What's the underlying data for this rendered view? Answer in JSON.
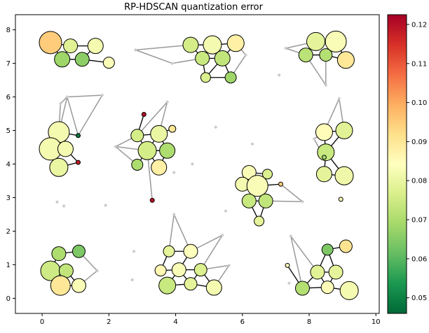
{
  "chart_data": {
    "type": "scatter",
    "title": "RP-HDSCAN quantization error",
    "xlim": [
      -0.8,
      10.1
    ],
    "ylim": [
      -0.45,
      8.45
    ],
    "xticks": [
      0,
      2,
      4,
      6,
      8,
      10
    ],
    "yticks": [
      0,
      1,
      2,
      3,
      4,
      5,
      6,
      7,
      8
    ],
    "colorbar": {
      "min": 0.046,
      "max": 0.1225,
      "ticks": [
        0.05,
        0.06,
        0.07,
        0.08,
        0.09,
        0.1,
        0.11,
        0.12
      ],
      "tick_labels": [
        "0.05",
        "0.06",
        "0.07",
        "0.08",
        "0.09",
        "0.10",
        "0.11",
        "0.12"
      ],
      "colormap": "RdYlGn_r"
    },
    "noise_points": [
      [
        0.45,
        2.87
      ],
      [
        0.65,
        2.75
      ],
      [
        1.9,
        2.77
      ],
      [
        2.75,
        1.4
      ],
      [
        2.7,
        0.55
      ],
      [
        3.95,
        3.75
      ],
      [
        5.2,
        5.1
      ],
      [
        5.5,
        2.6
      ],
      [
        6.3,
        4.6
      ],
      [
        7.1,
        6.65
      ],
      [
        7.4,
        0.45
      ],
      [
        4.5,
        4.0
      ]
    ],
    "nodes": [
      {
        "x": 0.25,
        "y": 7.62,
        "r": 16,
        "v": 0.095
      },
      {
        "x": 0.85,
        "y": 7.52,
        "r": 10,
        "v": 0.078
      },
      {
        "x": 1.6,
        "y": 7.52,
        "r": 11,
        "v": 0.082
      },
      {
        "x": 0.6,
        "y": 7.12,
        "r": 11,
        "v": 0.068
      },
      {
        "x": 1.2,
        "y": 7.12,
        "r": 10,
        "v": 0.066
      },
      {
        "x": 2.0,
        "y": 7.02,
        "r": 8,
        "v": 0.083
      },
      {
        "x": 4.45,
        "y": 7.55,
        "r": 11,
        "v": 0.076
      },
      {
        "x": 5.1,
        "y": 7.55,
        "r": 13,
        "v": 0.082
      },
      {
        "x": 5.8,
        "y": 7.6,
        "r": 12,
        "v": 0.088
      },
      {
        "x": 4.8,
        "y": 7.15,
        "r": 10,
        "v": 0.074
      },
      {
        "x": 5.4,
        "y": 7.15,
        "r": 11,
        "v": 0.073
      },
      {
        "x": 4.9,
        "y": 6.58,
        "r": 7,
        "v": 0.077
      },
      {
        "x": 5.65,
        "y": 6.58,
        "r": 8,
        "v": 0.068
      },
      {
        "x": 8.2,
        "y": 7.65,
        "r": 13,
        "v": 0.079
      },
      {
        "x": 8.8,
        "y": 7.65,
        "r": 15,
        "v": 0.083
      },
      {
        "x": 7.9,
        "y": 7.25,
        "r": 10,
        "v": 0.072
      },
      {
        "x": 8.5,
        "y": 7.25,
        "r": 9,
        "v": 0.071
      },
      {
        "x": 9.1,
        "y": 7.1,
        "r": 12,
        "v": 0.09
      },
      {
        "x": 0.5,
        "y": 4.95,
        "r": 15,
        "v": 0.082
      },
      {
        "x": 0.25,
        "y": 4.45,
        "r": 16,
        "v": 0.082
      },
      {
        "x": 0.7,
        "y": 4.45,
        "r": 11,
        "v": 0.082
      },
      {
        "x": 0.5,
        "y": 3.9,
        "r": 13,
        "v": 0.08
      },
      {
        "x": 1.08,
        "y": 4.85,
        "r": 3,
        "v": 0.048
      },
      {
        "x": 1.08,
        "y": 4.05,
        "r": 3,
        "v": 0.118
      },
      {
        "x": 3.05,
        "y": 5.48,
        "r": 3,
        "v": 0.12
      },
      {
        "x": 2.85,
        "y": 4.85,
        "r": 9,
        "v": 0.076
      },
      {
        "x": 3.5,
        "y": 4.9,
        "r": 12,
        "v": 0.08
      },
      {
        "x": 3.9,
        "y": 5.05,
        "r": 5,
        "v": 0.09
      },
      {
        "x": 3.15,
        "y": 4.4,
        "r": 13,
        "v": 0.076
      },
      {
        "x": 3.75,
        "y": 4.4,
        "r": 11,
        "v": 0.07
      },
      {
        "x": 2.85,
        "y": 3.98,
        "r": 8,
        "v": 0.07
      },
      {
        "x": 3.5,
        "y": 3.9,
        "r": 11,
        "v": 0.088
      },
      {
        "x": 3.3,
        "y": 2.92,
        "r": 3,
        "v": 0.12
      },
      {
        "x": 8.45,
        "y": 4.95,
        "r": 12,
        "v": 0.085
      },
      {
        "x": 9.05,
        "y": 5.0,
        "r": 12,
        "v": 0.078
      },
      {
        "x": 8.5,
        "y": 4.35,
        "r": 12,
        "v": 0.074
      },
      {
        "x": 8.45,
        "y": 3.7,
        "r": 11,
        "v": 0.079
      },
      {
        "x": 9.05,
        "y": 3.65,
        "r": 13,
        "v": 0.081
      },
      {
        "x": 8.45,
        "y": 4.2,
        "r": 3,
        "v": 0.069
      },
      {
        "x": 8.95,
        "y": 2.95,
        "r": 3,
        "v": 0.083
      },
      {
        "x": 6.2,
        "y": 3.75,
        "r": 10,
        "v": 0.083
      },
      {
        "x": 6.75,
        "y": 3.7,
        "r": 7,
        "v": 0.077
      },
      {
        "x": 6.0,
        "y": 3.4,
        "r": 10,
        "v": 0.082
      },
      {
        "x": 6.45,
        "y": 3.35,
        "r": 15,
        "v": 0.083
      },
      {
        "x": 7.15,
        "y": 3.4,
        "r": 3,
        "v": 0.095
      },
      {
        "x": 6.2,
        "y": 2.9,
        "r": 10,
        "v": 0.074
      },
      {
        "x": 6.7,
        "y": 2.9,
        "r": 10,
        "v": 0.073
      },
      {
        "x": 6.5,
        "y": 2.3,
        "r": 7,
        "v": 0.079
      },
      {
        "x": 0.5,
        "y": 1.33,
        "r": 10,
        "v": 0.07
      },
      {
        "x": 1.1,
        "y": 1.4,
        "r": 9,
        "v": 0.064
      },
      {
        "x": 0.25,
        "y": 0.82,
        "r": 14,
        "v": 0.075
      },
      {
        "x": 0.72,
        "y": 0.82,
        "r": 10,
        "v": 0.073
      },
      {
        "x": 0.55,
        "y": 0.38,
        "r": 14,
        "v": 0.09
      },
      {
        "x": 1.1,
        "y": 0.38,
        "r": 10,
        "v": 0.083
      },
      {
        "x": 3.8,
        "y": 1.4,
        "r": 8,
        "v": 0.079
      },
      {
        "x": 4.45,
        "y": 1.4,
        "r": 10,
        "v": 0.084
      },
      {
        "x": 3.55,
        "y": 0.83,
        "r": 8,
        "v": 0.086
      },
      {
        "x": 4.1,
        "y": 0.85,
        "r": 10,
        "v": 0.083
      },
      {
        "x": 4.75,
        "y": 0.85,
        "r": 9,
        "v": 0.077
      },
      {
        "x": 3.75,
        "y": 0.38,
        "r": 12,
        "v": 0.074
      },
      {
        "x": 4.45,
        "y": 0.43,
        "r": 9,
        "v": 0.079
      },
      {
        "x": 5.15,
        "y": 0.32,
        "r": 11,
        "v": 0.082
      },
      {
        "x": 8.55,
        "y": 1.45,
        "r": 8,
        "v": 0.064
      },
      {
        "x": 9.1,
        "y": 1.55,
        "r": 9,
        "v": 0.091
      },
      {
        "x": 8.25,
        "y": 0.78,
        "r": 10,
        "v": 0.078
      },
      {
        "x": 8.8,
        "y": 0.78,
        "r": 10,
        "v": 0.079
      },
      {
        "x": 7.8,
        "y": 0.3,
        "r": 10,
        "v": 0.071
      },
      {
        "x": 8.55,
        "y": 0.33,
        "r": 9,
        "v": 0.085
      },
      {
        "x": 9.2,
        "y": 0.23,
        "r": 13,
        "v": 0.082
      },
      {
        "x": 7.35,
        "y": 0.98,
        "r": 3,
        "v": 0.085
      }
    ],
    "edges": [
      [
        0,
        1
      ],
      [
        1,
        2
      ],
      [
        1,
        3
      ],
      [
        3,
        4
      ],
      [
        2,
        4
      ],
      [
        4,
        5
      ],
      [
        0,
        3
      ],
      [
        6,
        7
      ],
      [
        7,
        8
      ],
      [
        6,
        9
      ],
      [
        7,
        9
      ],
      [
        7,
        10
      ],
      [
        8,
        10
      ],
      [
        9,
        10
      ],
      [
        9,
        11
      ],
      [
        10,
        11
      ],
      [
        11,
        12
      ],
      [
        10,
        12
      ],
      [
        13,
        14
      ],
      [
        13,
        15
      ],
      [
        14,
        16
      ],
      [
        15,
        16
      ],
      [
        16,
        17
      ],
      [
        14,
        17
      ],
      [
        18,
        19
      ],
      [
        19,
        20
      ],
      [
        19,
        21
      ],
      [
        18,
        22
      ],
      [
        20,
        23
      ],
      [
        21,
        23
      ],
      [
        25,
        26
      ],
      [
        26,
        27
      ],
      [
        25,
        28
      ],
      [
        26,
        28
      ],
      [
        28,
        29
      ],
      [
        28,
        30
      ],
      [
        28,
        31
      ],
      [
        26,
        29
      ],
      [
        29,
        31
      ],
      [
        24,
        25
      ],
      [
        33,
        34
      ],
      [
        33,
        35
      ],
      [
        34,
        35
      ],
      [
        35,
        36
      ],
      [
        35,
        37
      ],
      [
        36,
        37
      ],
      [
        35,
        38
      ],
      [
        40,
        41
      ],
      [
        40,
        42
      ],
      [
        41,
        43
      ],
      [
        42,
        43
      ],
      [
        43,
        44
      ],
      [
        43,
        45
      ],
      [
        43,
        46
      ],
      [
        45,
        46
      ],
      [
        46,
        47
      ],
      [
        45,
        47
      ],
      [
        48,
        49
      ],
      [
        48,
        50
      ],
      [
        50,
        51
      ],
      [
        51,
        52
      ],
      [
        51,
        53
      ],
      [
        52,
        53
      ],
      [
        54,
        55
      ],
      [
        54,
        56
      ],
      [
        56,
        57
      ],
      [
        57,
        58
      ],
      [
        57,
        59
      ],
      [
        57,
        60
      ],
      [
        58,
        60
      ],
      [
        59,
        60
      ],
      [
        60,
        61
      ],
      [
        58,
        61
      ],
      [
        55,
        57
      ],
      [
        62,
        63
      ],
      [
        62,
        64
      ],
      [
        62,
        65
      ],
      [
        64,
        65
      ],
      [
        64,
        66
      ],
      [
        65,
        67
      ],
      [
        66,
        67
      ],
      [
        67,
        68
      ],
      [
        64,
        67
      ],
      [
        66,
        69
      ]
    ],
    "gray_edges": [
      [
        [
          0.55,
          5.8
        ],
        [
          0.75,
          6.0
        ]
      ],
      [
        [
          0.75,
          6.0
        ],
        [
          1.8,
          6.05
        ]
      ],
      [
        [
          0.75,
          6.0
        ],
        [
          1.08,
          4.85
        ]
      ],
      [
        [
          1.8,
          6.05
        ],
        [
          1.08,
          4.85
        ]
      ],
      [
        [
          0.75,
          6.0
        ],
        [
          0.5,
          4.95
        ]
      ],
      [
        [
          0.55,
          5.8
        ],
        [
          0.5,
          4.95
        ]
      ],
      [
        [
          2.8,
          7.4
        ],
        [
          4.45,
          7.55
        ]
      ],
      [
        [
          2.8,
          7.4
        ],
        [
          3.9,
          7.0
        ]
      ],
      [
        [
          3.9,
          7.0
        ],
        [
          4.8,
          7.15
        ]
      ],
      [
        [
          5.8,
          7.6
        ],
        [
          6.1,
          7.25
        ]
      ],
      [
        [
          5.65,
          6.58
        ],
        [
          6.1,
          7.25
        ]
      ],
      [
        [
          7.3,
          7.45
        ],
        [
          8.2,
          7.65
        ]
      ],
      [
        [
          7.3,
          7.45
        ],
        [
          7.9,
          7.25
        ]
      ],
      [
        [
          8.5,
          6.35
        ],
        [
          7.9,
          7.25
        ]
      ],
      [
        [
          8.5,
          6.35
        ],
        [
          8.5,
          7.25
        ]
      ],
      [
        [
          2.2,
          4.52
        ],
        [
          2.85,
          4.85
        ]
      ],
      [
        [
          2.2,
          4.52
        ],
        [
          2.85,
          3.98
        ]
      ],
      [
        [
          2.2,
          4.52
        ],
        [
          3.15,
          4.4
        ]
      ],
      [
        [
          3.75,
          5.85
        ],
        [
          3.5,
          4.9
        ]
      ],
      [
        [
          3.75,
          5.85
        ],
        [
          2.85,
          4.85
        ]
      ],
      [
        [
          3.3,
          2.92
        ],
        [
          3.15,
          4.4
        ]
      ],
      [
        [
          8.9,
          5.95
        ],
        [
          8.45,
          4.95
        ]
      ],
      [
        [
          8.9,
          5.95
        ],
        [
          9.05,
          5.0
        ]
      ],
      [
        [
          8.15,
          4.75
        ],
        [
          8.45,
          4.2
        ]
      ],
      [
        [
          8.15,
          4.75
        ],
        [
          8.45,
          4.95
        ]
      ],
      [
        [
          7.8,
          2.88
        ],
        [
          7.15,
          3.4
        ]
      ],
      [
        [
          7.8,
          2.88
        ],
        [
          6.7,
          2.9
        ]
      ],
      [
        [
          1.65,
          0.82
        ],
        [
          1.1,
          1.4
        ]
      ],
      [
        [
          1.65,
          0.82
        ],
        [
          1.1,
          0.38
        ]
      ],
      [
        [
          3.95,
          2.5
        ],
        [
          3.8,
          1.4
        ]
      ],
      [
        [
          3.95,
          2.5
        ],
        [
          4.45,
          1.4
        ]
      ],
      [
        [
          5.4,
          1.88
        ],
        [
          4.45,
          1.4
        ]
      ],
      [
        [
          5.4,
          1.88
        ],
        [
          4.75,
          0.85
        ]
      ],
      [
        [
          5.6,
          0.98
        ],
        [
          4.75,
          0.85
        ]
      ],
      [
        [
          5.6,
          0.98
        ],
        [
          5.15,
          0.32
        ]
      ],
      [
        [
          7.45,
          1.85
        ],
        [
          8.25,
          0.78
        ]
      ],
      [
        [
          7.45,
          1.85
        ],
        [
          7.8,
          0.3
        ]
      ]
    ],
    "gray_points": [
      [
        0.75,
        6.0
      ],
      [
        1.8,
        6.05
      ],
      [
        0.55,
        5.8
      ],
      [
        2.8,
        7.4
      ],
      [
        3.9,
        7.0
      ],
      [
        6.1,
        7.25
      ],
      [
        7.3,
        7.45
      ],
      [
        8.5,
        6.35
      ],
      [
        2.2,
        4.52
      ],
      [
        3.75,
        5.85
      ],
      [
        8.9,
        5.95
      ],
      [
        8.15,
        4.75
      ],
      [
        7.8,
        2.88
      ],
      [
        1.65,
        0.82
      ],
      [
        3.95,
        2.5
      ],
      [
        5.4,
        1.88
      ],
      [
        5.6,
        0.98
      ],
      [
        7.45,
        1.85
      ]
    ]
  }
}
